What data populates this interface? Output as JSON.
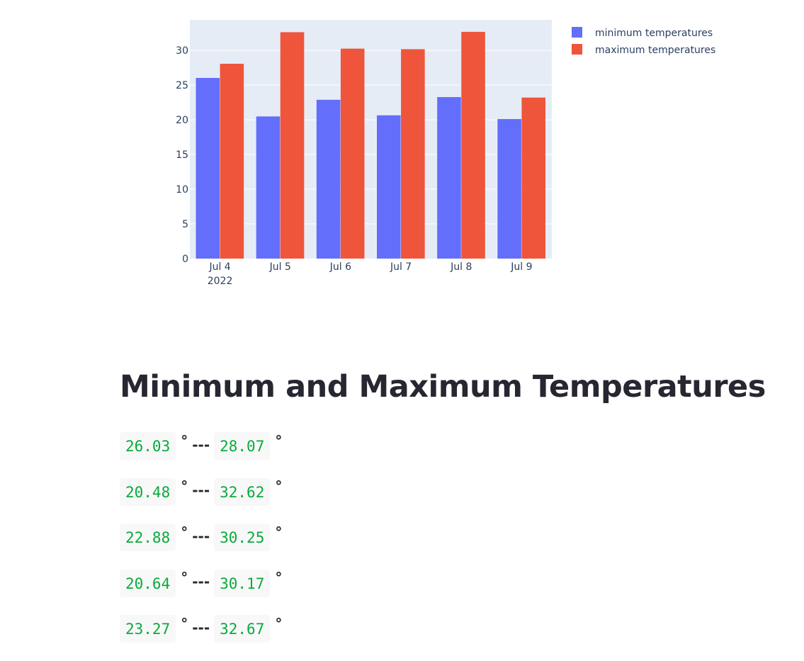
{
  "chart_data": {
    "type": "bar",
    "categories": [
      "Jul 4\n2022",
      "Jul 5",
      "Jul 6",
      "Jul 7",
      "Jul 8",
      "Jul 9"
    ],
    "x": [
      "2022-07-04",
      "2022-07-05",
      "2022-07-06",
      "2022-07-07",
      "2022-07-08",
      "2022-07-09"
    ],
    "series": [
      {
        "name": "minimum temperatures",
        "color": "#636efa",
        "values": [
          26.03,
          20.48,
          22.88,
          20.64,
          23.27,
          20.1
        ]
      },
      {
        "name": "maximum temperatures",
        "color": "#ef553b",
        "values": [
          28.07,
          32.62,
          30.25,
          30.17,
          32.67,
          23.2
        ]
      }
    ],
    "ylim": [
      0,
      34.4
    ],
    "yticks": [
      0,
      5,
      10,
      15,
      20,
      25,
      30
    ],
    "grid": true,
    "legend_position": "top-right",
    "plot_background": "#e5ecf6"
  },
  "heading": "Minimum and Maximum Temperatures",
  "degree_symbol": "°",
  "separator": "---",
  "rows": [
    {
      "min": "26.03",
      "max": "28.07"
    },
    {
      "min": "20.48",
      "max": "32.62"
    },
    {
      "min": "22.88",
      "max": "30.25"
    },
    {
      "min": "20.64",
      "max": "30.17"
    },
    {
      "min": "23.27",
      "max": "32.67"
    }
  ]
}
